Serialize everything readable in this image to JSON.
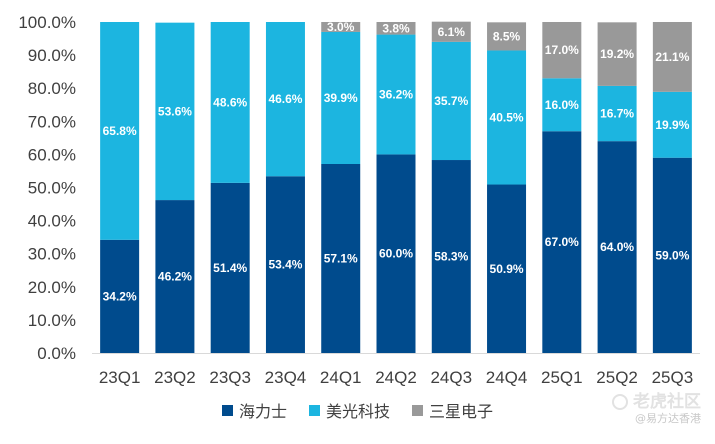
{
  "chart_data": {
    "type": "bar",
    "stacked": true,
    "title": "",
    "xlabel": "",
    "ylabel": "",
    "ylim": [
      0,
      100
    ],
    "y_ticks": [
      "0.0%",
      "10.0%",
      "20.0%",
      "30.0%",
      "40.0%",
      "50.0%",
      "60.0%",
      "70.0%",
      "80.0%",
      "90.0%",
      "100.0%"
    ],
    "categories": [
      "23Q1",
      "23Q2",
      "23Q3",
      "23Q4",
      "24Q1",
      "24Q2",
      "24Q3",
      "24Q4",
      "25Q1",
      "25Q2",
      "25Q3"
    ],
    "series": [
      {
        "name": "海力士",
        "color": "#004b8d",
        "values": [
          34.2,
          46.2,
          51.4,
          53.4,
          57.1,
          60.0,
          58.3,
          50.9,
          67.0,
          64.0,
          59.0
        ],
        "labels": [
          "34.2%",
          "46.2%",
          "51.4%",
          "53.4%",
          "57.1%",
          "60.0%",
          "58.3%",
          "50.9%",
          "67.0%",
          "64.0%",
          "59.0%"
        ]
      },
      {
        "name": "美光科技",
        "color": "#1cb5e0",
        "values": [
          65.8,
          53.6,
          48.6,
          46.6,
          39.9,
          36.2,
          35.7,
          40.5,
          16.0,
          16.7,
          19.9
        ],
        "labels": [
          "65.8%",
          "53.6%",
          "48.6%",
          "46.6%",
          "39.9%",
          "36.2%",
          "35.7%",
          "40.5%",
          "16.0%",
          "16.7%",
          "19.9%"
        ]
      },
      {
        "name": "三星电子",
        "color": "#999999",
        "values": [
          0,
          0,
          0,
          0,
          3.0,
          3.8,
          6.1,
          8.5,
          17.0,
          19.2,
          21.1
        ],
        "labels": [
          "",
          "",
          "",
          "",
          "3.0%",
          "3.8%",
          "6.1%",
          "8.5%",
          "17.0%",
          "19.2%",
          "21.1%"
        ]
      }
    ],
    "legend_position": "bottom"
  },
  "watermark": {
    "line1": "老虎社区",
    "line2": "@易方达香港"
  }
}
